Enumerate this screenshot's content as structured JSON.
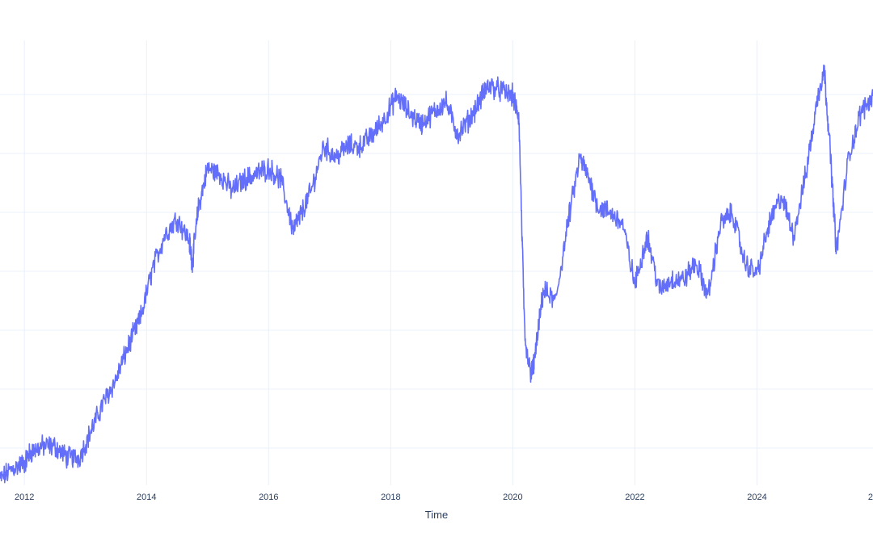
{
  "chart_data": {
    "type": "line",
    "xlabel": "Time",
    "ylabel": "",
    "xlim": [
      2011.6,
      2025.9
    ],
    "ylim": [
      88,
      168
    ],
    "x_ticks": [
      "2012",
      "2014",
      "2016",
      "2018",
      "2020",
      "2022",
      "2024",
      "2"
    ],
    "grid": true,
    "series": [
      {
        "color": "#636efa",
        "x": [
          2011.6,
          2011.8,
          2012.0,
          2012.1,
          2012.3,
          2012.5,
          2012.7,
          2012.9,
          2013.1,
          2013.3,
          2013.5,
          2013.7,
          2013.9,
          2014.1,
          2014.3,
          2014.5,
          2014.7,
          2014.75,
          2014.85,
          2015.0,
          2015.2,
          2015.4,
          2015.6,
          2015.8,
          2016.0,
          2016.2,
          2016.4,
          2016.5,
          2016.7,
          2016.9,
          2017.1,
          2017.3,
          2017.5,
          2017.7,
          2017.9,
          2018.1,
          2018.3,
          2018.5,
          2018.7,
          2018.9,
          2019.1,
          2019.3,
          2019.5,
          2019.6,
          2019.8,
          2020.0,
          2020.1,
          2020.2,
          2020.3,
          2020.35,
          2020.5,
          2020.7,
          2020.9,
          2021.1,
          2021.25,
          2021.4,
          2021.6,
          2021.8,
          2022.0,
          2022.2,
          2022.4,
          2022.6,
          2022.8,
          2023.0,
          2023.2,
          2023.4,
          2023.6,
          2023.8,
          2024.0,
          2024.2,
          2024.4,
          2024.6,
          2024.8,
          2025.0,
          2025.1,
          2025.2,
          2025.3,
          2025.5,
          2025.7,
          2025.9
        ],
        "y": [
          89,
          91,
          92,
          94,
          95,
          95,
          93,
          93,
          98,
          103,
          107,
          113,
          118,
          127,
          133,
          136,
          132,
          128,
          138,
          145,
          144,
          141,
          143,
          144,
          145,
          143,
          134,
          136,
          141,
          149,
          147,
          149,
          149,
          151,
          154,
          158,
          155,
          153,
          155,
          157,
          151,
          154,
          158,
          160,
          159,
          158,
          154,
          113,
          108,
          110,
          123,
          121,
          135,
          147,
          143,
          138,
          137,
          135,
          124,
          133,
          123,
          125,
          125,
          128,
          122,
          135,
          137,
          128,
          126,
          135,
          140,
          133,
          144,
          158,
          163,
          148,
          130,
          147,
          155,
          158
        ]
      }
    ]
  }
}
